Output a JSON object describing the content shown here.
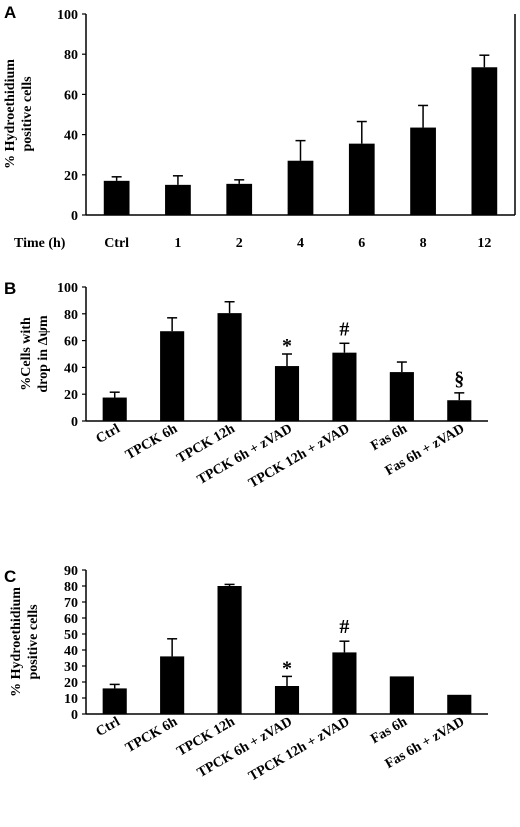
{
  "chart_data": [
    {
      "panel": "A",
      "type": "bar",
      "xlabel": "Time (h)",
      "ylabel": [
        "% Hydroethidium",
        "positive cells"
      ],
      "categories": [
        "Ctrl",
        "1",
        "2",
        "4",
        "6",
        "8",
        "12"
      ],
      "values": [
        17,
        15,
        15.5,
        27,
        35.5,
        43.5,
        73.5
      ],
      "errors": [
        2,
        4.5,
        2,
        10,
        11,
        11,
        6
      ],
      "annotations": [
        "",
        "",
        "",
        "",
        "",
        "",
        ""
      ],
      "ylim": [
        0,
        100
      ],
      "yticks": [
        0,
        20,
        40,
        60,
        80,
        100
      ],
      "grid": false,
      "color": "#000000"
    },
    {
      "panel": "B",
      "type": "bar",
      "xlabel": "",
      "ylabel": [
        "%Cells with",
        "drop in Δψm"
      ],
      "categories": [
        "Ctrl",
        "TPCK 6h",
        "TPCK 12h",
        "TPCK 6h + zVAD",
        "TPCK 12h + zVAD",
        "Fas 6h",
        "Fas 6h + zVAD"
      ],
      "values": [
        17.5,
        67,
        80.5,
        41,
        51,
        36.5,
        15.5
      ],
      "errors": [
        4,
        10,
        8.5,
        9,
        7,
        7.5,
        5.5
      ],
      "annotations": [
        "",
        "",
        "",
        "*",
        "#",
        "",
        "§"
      ],
      "ylim": [
        0,
        100
      ],
      "yticks": [
        0,
        20,
        40,
        60,
        80,
        100
      ],
      "grid": false,
      "color": "#000000"
    },
    {
      "panel": "C",
      "type": "bar",
      "xlabel": "",
      "ylabel": [
        "% Hydroethidium",
        "positive cells"
      ],
      "categories": [
        "Ctrl",
        "TPCK 6h",
        "TPCK 12h",
        "TPCK 6h + zVAD",
        "TPCK 12h + zVAD",
        "Fas 6h",
        "Fas 6h + zVAD"
      ],
      "values": [
        16,
        36,
        80,
        17.5,
        38.5,
        23.5,
        12
      ],
      "errors": [
        2.5,
        11,
        1,
        6,
        7,
        0,
        0
      ],
      "annotations": [
        "",
        "",
        "",
        "*",
        "#",
        "",
        ""
      ],
      "ylim": [
        0,
        90
      ],
      "yticks": [
        0,
        10,
        20,
        30,
        40,
        50,
        60,
        70,
        80,
        90
      ],
      "grid": false,
      "color": "#000000"
    }
  ]
}
